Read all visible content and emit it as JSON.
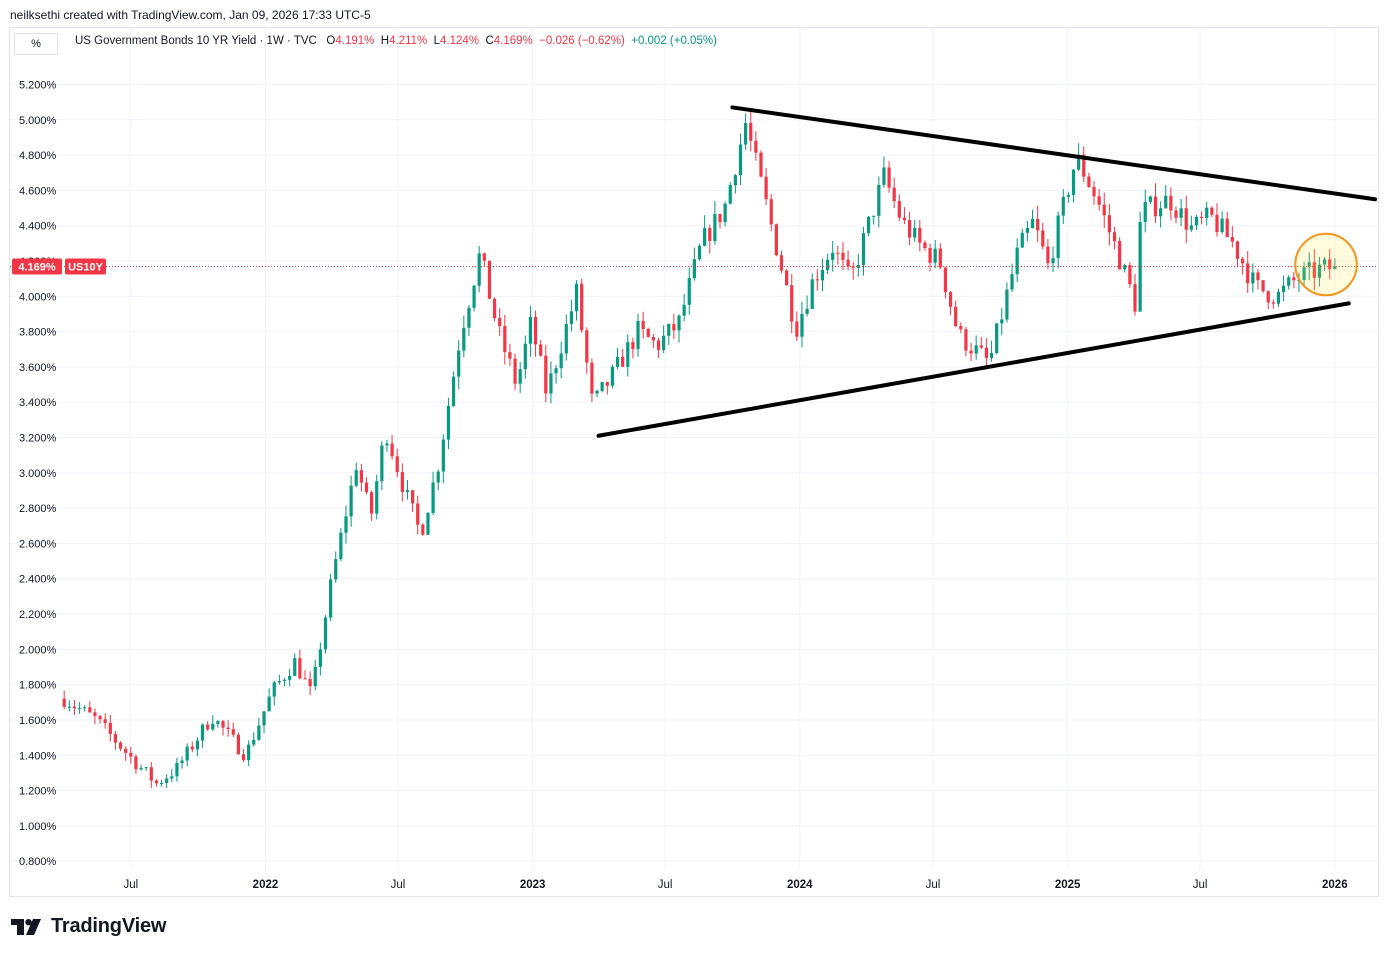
{
  "header": {
    "credit": "neilksethi created with TradingView.com, Jan 09, 2026 17:33 UTC-5"
  },
  "legend": {
    "unit": "%",
    "symbol": "US Government Bonds 10 YR Yield · 1W · TVC",
    "open_key": "O",
    "open": "4.191%",
    "high_key": "H",
    "high": "4.211%",
    "low_key": "L",
    "low": "4.124%",
    "close_key": "C",
    "close": "4.169%",
    "change": "−0.026 (−0.62%)",
    "ext_change": "+0.002 (+0.05%)"
  },
  "brand": {
    "name": "TradingView",
    "icon": "tradingview-logo-icon"
  },
  "colors": {
    "up": "#089981",
    "down": "#f23645",
    "grid": "#f0f3fa",
    "price_line": "#f23645",
    "highlight": "#f7931a"
  },
  "chart_data": {
    "type": "candlestick",
    "title": "US Government Bonds 10 YR Yield",
    "interval": "1W",
    "source": "TVC",
    "yunit": "%",
    "ylim": [
      0.75,
      5.35
    ],
    "y_ticks": [
      "0.800%",
      "1.000%",
      "1.200%",
      "1.400%",
      "1.600%",
      "1.800%",
      "2.000%",
      "2.200%",
      "2.400%",
      "2.600%",
      "2.800%",
      "3.000%",
      "3.200%",
      "3.400%",
      "3.600%",
      "3.800%",
      "4.000%",
      "4.200%",
      "4.400%",
      "4.600%",
      "4.800%",
      "5.000%",
      "5.200%"
    ],
    "x_ticks": [
      {
        "label": "Jul",
        "date": "2021-07-01"
      },
      {
        "label": "2022",
        "date": "2022-01-01"
      },
      {
        "label": "Jul",
        "date": "2022-07-01"
      },
      {
        "label": "2023",
        "date": "2023-01-01"
      },
      {
        "label": "Jul",
        "date": "2023-07-01"
      },
      {
        "label": "2024",
        "date": "2024-01-01"
      },
      {
        "label": "Jul",
        "date": "2024-07-01"
      },
      {
        "label": "2025",
        "date": "2025-01-01"
      },
      {
        "label": "Jul",
        "date": "2025-07-01"
      },
      {
        "label": "2026",
        "date": "2026-01-01"
      }
    ],
    "xlim": [
      "2021-03-29",
      "2026-03-01"
    ],
    "last_price": 4.169,
    "last_price_label": "4.169%",
    "symbol_tag": "US10Y",
    "series_anchors": [
      [
        "2021-04-01",
        1.72
      ],
      [
        "2021-05-15",
        1.6
      ],
      [
        "2021-07-05",
        1.37
      ],
      [
        "2021-08-05",
        1.24
      ],
      [
        "2021-09-01",
        1.32
      ],
      [
        "2021-10-20",
        1.62
      ],
      [
        "2021-12-05",
        1.4
      ],
      [
        "2022-01-10",
        1.76
      ],
      [
        "2022-02-10",
        1.93
      ],
      [
        "2022-03-05",
        1.74
      ],
      [
        "2022-04-01",
        2.38
      ],
      [
        "2022-05-05",
        3.05
      ],
      [
        "2022-05-25",
        2.75
      ],
      [
        "2022-06-14",
        3.25
      ],
      [
        "2022-07-10",
        2.9
      ],
      [
        "2022-08-01",
        2.65
      ],
      [
        "2022-08-25",
        3.05
      ],
      [
        "2022-09-25",
        3.8
      ],
      [
        "2022-10-21",
        4.24
      ],
      [
        "2022-11-15",
        3.8
      ],
      [
        "2022-12-10",
        3.5
      ],
      [
        "2022-12-30",
        3.85
      ],
      [
        "2023-01-20",
        3.45
      ],
      [
        "2023-03-02",
        4.02
      ],
      [
        "2023-03-24",
        3.38
      ],
      [
        "2023-04-20",
        3.55
      ],
      [
        "2023-05-25",
        3.8
      ],
      [
        "2023-06-20",
        3.72
      ],
      [
        "2023-07-20",
        3.85
      ],
      [
        "2023-08-20",
        4.3
      ],
      [
        "2023-09-20",
        4.5
      ],
      [
        "2023-10-19",
        4.98
      ],
      [
        "2023-11-10",
        4.62
      ],
      [
        "2023-12-05",
        4.2
      ],
      [
        "2023-12-27",
        3.82
      ],
      [
        "2024-01-20",
        4.1
      ],
      [
        "2024-02-15",
        4.28
      ],
      [
        "2024-03-10",
        4.08
      ],
      [
        "2024-04-25",
        4.68
      ],
      [
        "2024-05-20",
        4.42
      ],
      [
        "2024-06-15",
        4.28
      ],
      [
        "2024-07-10",
        4.2
      ],
      [
        "2024-08-05",
        3.78
      ],
      [
        "2024-09-16",
        3.62
      ],
      [
        "2024-10-25",
        4.25
      ],
      [
        "2024-11-15",
        4.42
      ],
      [
        "2024-12-05",
        4.17
      ],
      [
        "2025-01-13",
        4.79
      ],
      [
        "2025-02-10",
        4.55
      ],
      [
        "2025-03-10",
        4.25
      ],
      [
        "2025-04-04",
        3.95
      ],
      [
        "2025-04-11",
        4.48
      ],
      [
        "2025-05-20",
        4.55
      ],
      [
        "2025-06-20",
        4.38
      ],
      [
        "2025-07-15",
        4.45
      ],
      [
        "2025-08-15",
        4.3
      ],
      [
        "2025-09-15",
        4.05
      ],
      [
        "2025-10-15",
        4.0
      ],
      [
        "2025-11-10",
        4.1
      ],
      [
        "2025-12-10",
        4.15
      ],
      [
        "2026-01-05",
        4.17
      ]
    ],
    "annotations": {
      "upper_trendline": [
        [
          "2023-10-01",
          5.07
        ],
        [
          "2026-02-25",
          4.55
        ]
      ],
      "lower_trendline": [
        [
          "2023-04-01",
          3.21
        ],
        [
          "2026-01-20",
          3.96
        ]
      ],
      "circle": {
        "center": [
          "2025-12-20",
          4.18
        ],
        "radius_weeks": 6
      }
    },
    "grid": true,
    "legend_position": "top-left"
  }
}
